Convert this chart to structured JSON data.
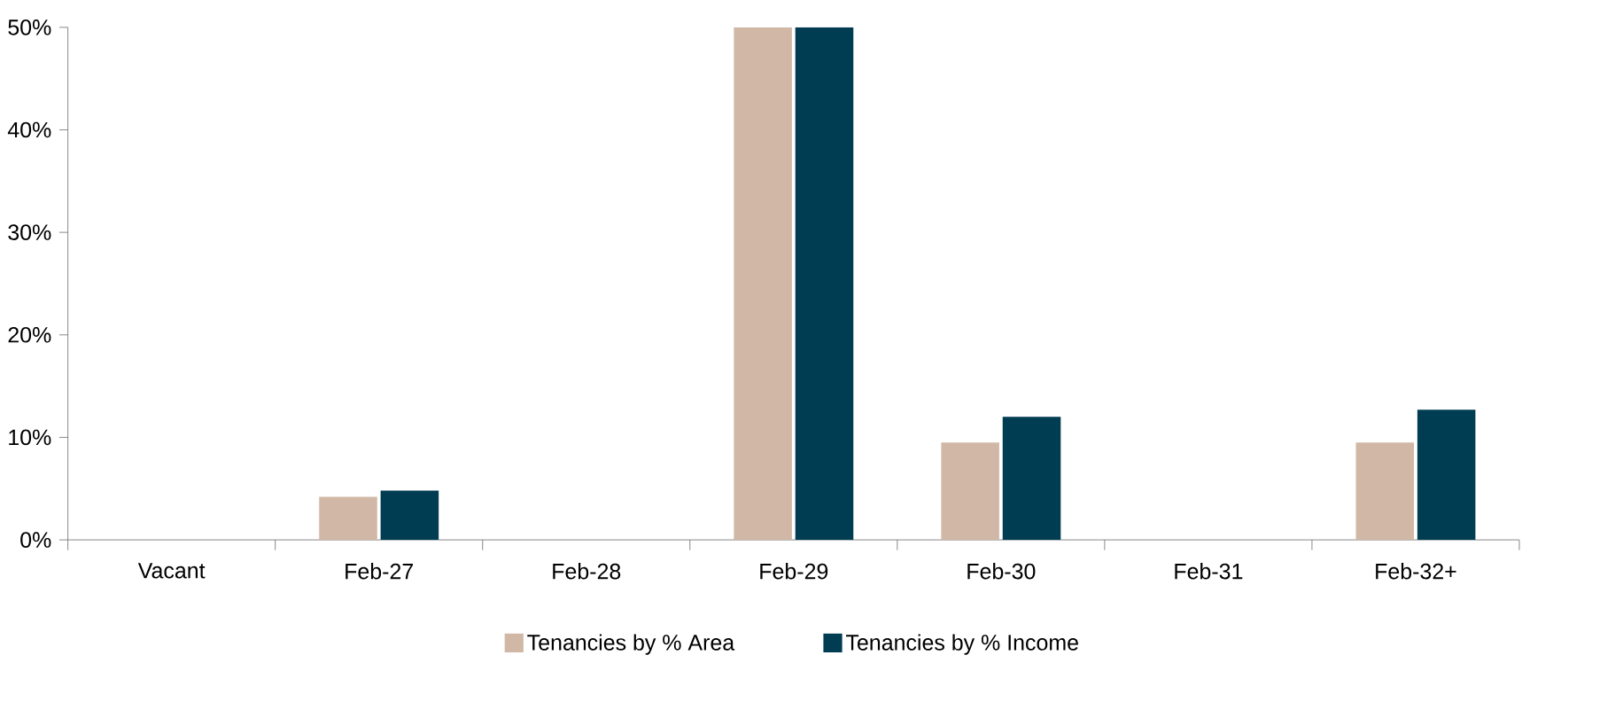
{
  "chart_data": {
    "type": "bar",
    "categories": [
      "Vacant",
      "Feb-27",
      "Feb-28",
      "Feb-29",
      "Feb-30",
      "Feb-31",
      "Feb-32+"
    ],
    "series": [
      {
        "name": "Tenancies by % Area",
        "color": "#d1b8a6",
        "values": [
          0,
          4.2,
          0,
          50,
          9.5,
          0,
          9.5
        ]
      },
      {
        "name": "Tenancies by % Income",
        "color": "#003d52",
        "values": [
          0,
          4.8,
          0,
          50,
          12.0,
          0,
          12.7
        ]
      }
    ],
    "ylim": [
      0,
      50
    ],
    "yticks": [
      {
        "value": 0,
        "label": "0%"
      },
      {
        "value": 10,
        "label": "10%"
      },
      {
        "value": 20,
        "label": "20%"
      },
      {
        "value": 30,
        "label": "30%"
      },
      {
        "value": 40,
        "label": "40%"
      },
      {
        "value": 50,
        "label": "50%"
      }
    ],
    "grid": false,
    "legend": "bottom"
  }
}
